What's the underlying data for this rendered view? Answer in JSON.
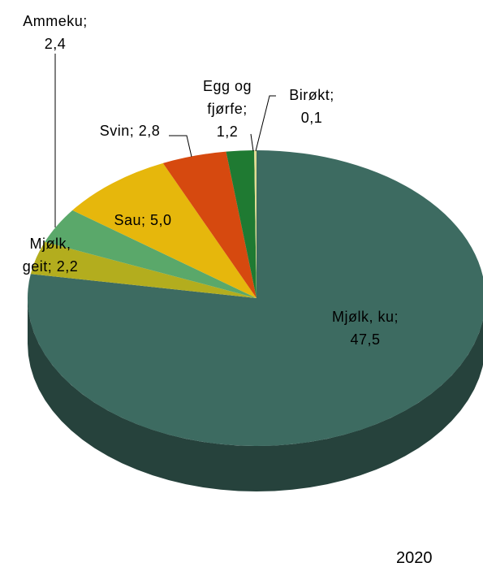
{
  "chart_data": {
    "type": "pie3d",
    "categories": [
      "Mjølk, ku",
      "Mjølk, geit",
      "Ammeku",
      "Sau",
      "Svin",
      "Egg og fjørfe",
      "Birøkt"
    ],
    "values": [
      47.5,
      2.2,
      2.4,
      5.0,
      2.8,
      1.2,
      0.1
    ],
    "value_labels": [
      "47,5",
      "2,2",
      "2,4",
      "5,0",
      "2,8",
      "1,2",
      "0,1"
    ],
    "label_separator": ";",
    "colors": [
      "#3d6b61",
      "#b3ad1e",
      "#5aa86a",
      "#e6b70c",
      "#d6490f",
      "#1f7a32",
      "#e2dc92"
    ],
    "caption": "2020"
  }
}
